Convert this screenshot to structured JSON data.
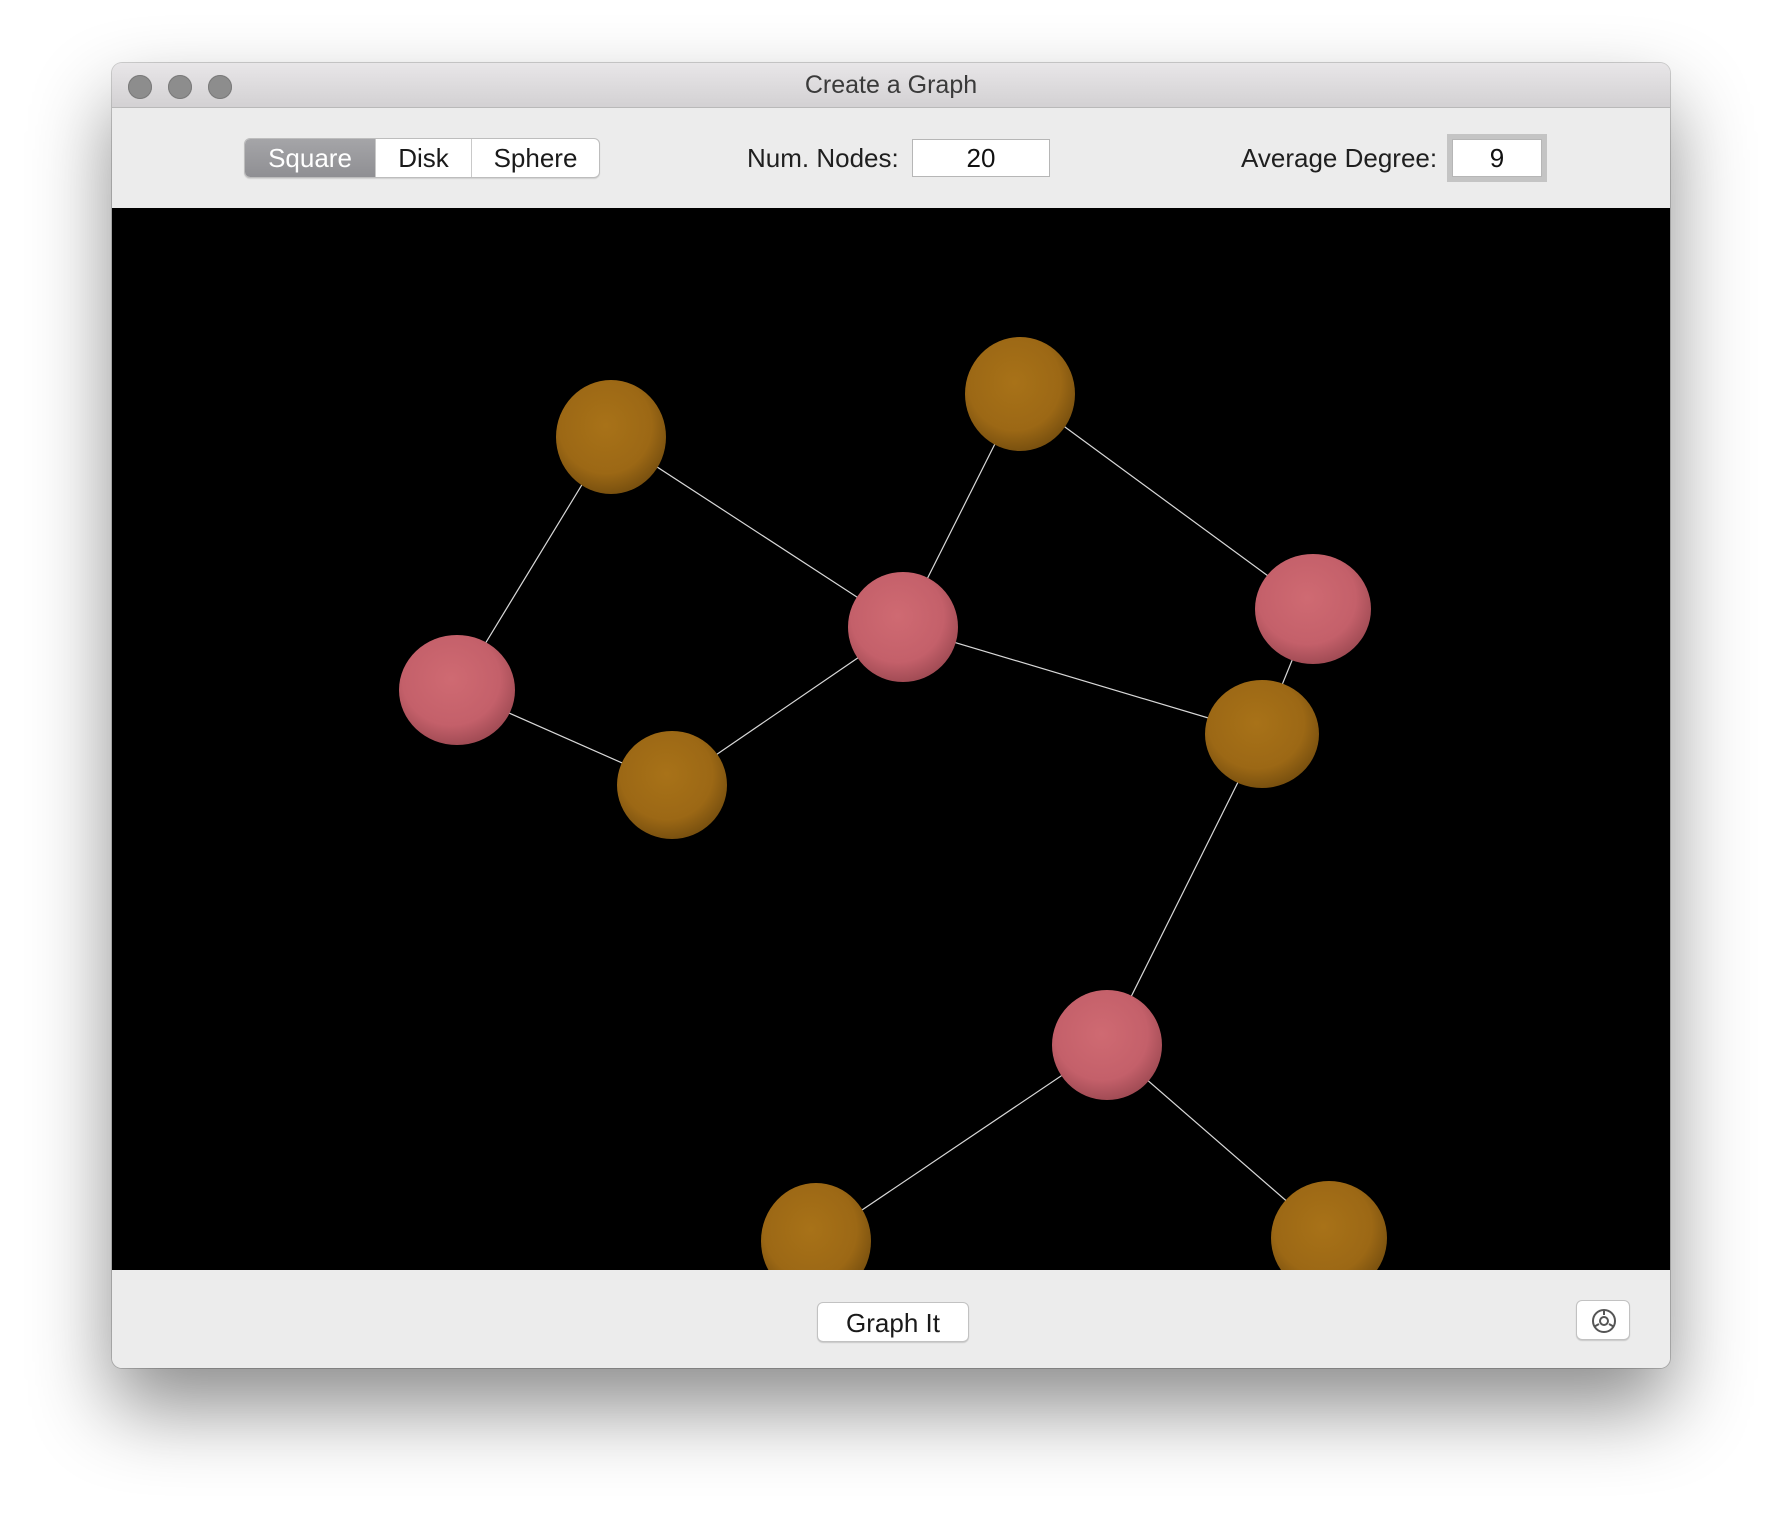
{
  "window": {
    "title": "Create a Graph"
  },
  "toolbar": {
    "shape_options": [
      "Square",
      "Disk",
      "Sphere"
    ],
    "selected_shape": "Square",
    "num_nodes_label": "Num. Nodes:",
    "num_nodes_value": "20",
    "average_degree_label": "Average Degree:",
    "average_degree_value": "9"
  },
  "graph": {
    "background": "#000000",
    "edge_color": "#d8d8d8",
    "node_colors": {
      "orange": "#a06c16",
      "pink": "#c9646c"
    },
    "nodes": [
      {
        "id": "n1",
        "color": "orange"
      },
      {
        "id": "n2",
        "color": "orange"
      },
      {
        "id": "n3",
        "color": "pink"
      },
      {
        "id": "n4",
        "color": "pink"
      },
      {
        "id": "n5",
        "color": "pink"
      },
      {
        "id": "n6",
        "color": "orange"
      },
      {
        "id": "n7",
        "color": "orange"
      },
      {
        "id": "n8",
        "color": "pink"
      },
      {
        "id": "n9",
        "color": "orange"
      },
      {
        "id": "n10",
        "color": "orange"
      }
    ],
    "edges": [
      [
        "n1",
        "n4"
      ],
      [
        "n1",
        "n3"
      ],
      [
        "n2",
        "n3"
      ],
      [
        "n2",
        "n5"
      ],
      [
        "n4",
        "n6"
      ],
      [
        "n6",
        "n3"
      ],
      [
        "n3",
        "n7"
      ],
      [
        "n5",
        "n7"
      ],
      [
        "n7",
        "n8"
      ],
      [
        "n8",
        "n9"
      ],
      [
        "n8",
        "n10"
      ]
    ]
  },
  "bottombar": {
    "graph_button_label": "Graph It",
    "settings_icon": "gear-icon"
  }
}
